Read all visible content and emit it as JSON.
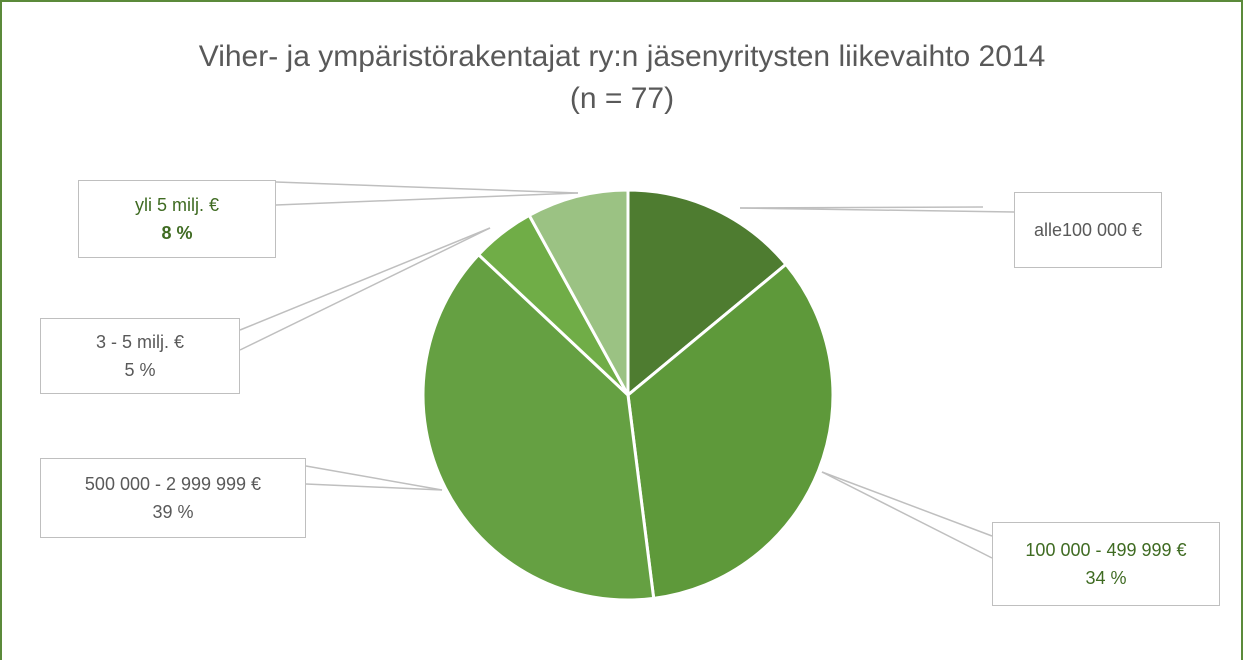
{
  "chart_data": {
    "type": "pie",
    "title": "Viher- ja ympäristörakentajat ry:n jäsenyritysten liikevaihto 2014",
    "subtitle": "(n = 77)",
    "categories": [
      "alle100 000 €",
      "100 000 - 499 999 €",
      "500 000 - 2 999 999 €",
      "3 - 5 milj. €",
      "yli 5 milj. €"
    ],
    "values": [
      14,
      34,
      39,
      5,
      8
    ],
    "value_labels": [
      null,
      "34 %",
      "39 %",
      "5 %",
      "8 %"
    ],
    "colors": [
      "#4e7c30",
      "#5e993a",
      "#65a042",
      "#70ad47",
      "#9bc283"
    ],
    "label_colors": [
      "#595959",
      "#3f6b22",
      "#595959",
      "#595959",
      "#3f6b22"
    ],
    "bold_value_labels": [
      false,
      false,
      false,
      false,
      true
    ]
  }
}
